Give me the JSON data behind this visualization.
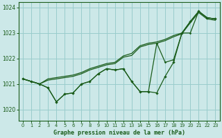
{
  "title": "Graphe pression niveau de la mer (hPa)",
  "bg_color": "#cce8e8",
  "grid_color": "#99cccc",
  "line_color": "#1a5c1a",
  "xlim": [
    -0.5,
    23.5
  ],
  "ylim": [
    1019.55,
    1024.2
  ],
  "yticks": [
    1020,
    1021,
    1022,
    1023,
    1024
  ],
  "xticks": [
    0,
    1,
    2,
    3,
    4,
    5,
    6,
    7,
    8,
    9,
    10,
    11,
    12,
    13,
    14,
    15,
    16,
    17,
    18,
    19,
    20,
    21,
    22,
    23
  ],
  "y_jagged1": [
    1021.2,
    1021.1,
    1021.0,
    1020.85,
    1020.3,
    1020.6,
    1020.65,
    1021.0,
    1021.1,
    1021.4,
    1021.6,
    1021.55,
    1021.6,
    1021.1,
    1020.7,
    1020.7,
    1020.65,
    1021.3,
    1021.85,
    1023.0,
    1023.45,
    1023.85,
    1023.6,
    1023.55
  ],
  "y_jagged2": [
    1021.2,
    1021.1,
    1021.0,
    1020.85,
    1020.3,
    1020.6,
    1020.65,
    1021.0,
    1021.1,
    1021.4,
    1021.6,
    1021.55,
    1021.6,
    1021.1,
    1020.7,
    1020.7,
    1022.6,
    1021.85,
    1021.95,
    1023.0,
    1023.0,
    1023.85,
    1023.6,
    1023.55
  ],
  "y_smooth1": [
    1021.2,
    1021.1,
    1021.0,
    1021.2,
    1021.25,
    1021.3,
    1021.35,
    1021.45,
    1021.6,
    1021.7,
    1021.8,
    1021.85,
    1022.1,
    1022.2,
    1022.5,
    1022.6,
    1022.65,
    1022.75,
    1022.9,
    1023.0,
    1023.45,
    1023.85,
    1023.6,
    1023.55
  ],
  "y_smooth2": [
    1021.2,
    1021.1,
    1021.0,
    1021.15,
    1021.2,
    1021.25,
    1021.3,
    1021.4,
    1021.55,
    1021.65,
    1021.75,
    1021.8,
    1022.05,
    1022.12,
    1022.45,
    1022.55,
    1022.6,
    1022.7,
    1022.85,
    1022.97,
    1023.4,
    1023.8,
    1023.55,
    1023.5
  ]
}
